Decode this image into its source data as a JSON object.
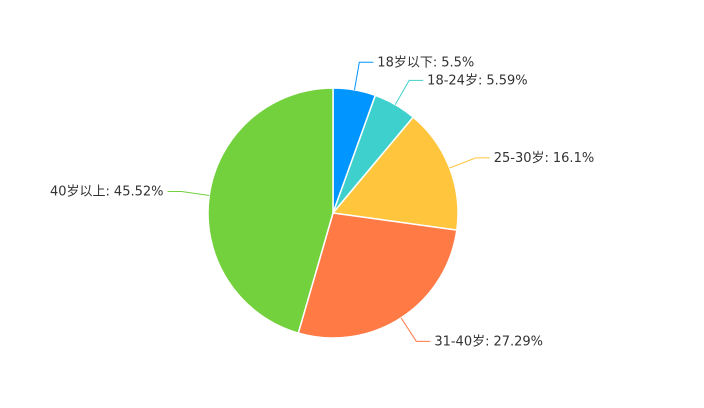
{
  "chart_data": {
    "type": "pie",
    "categories": [
      "18岁以下:",
      "18-24岁:",
      "25-30岁:",
      "31-40岁:",
      "40岁以上:"
    ],
    "values": [
      5.5,
      5.59,
      16.1,
      27.29,
      45.52
    ],
    "value_labels": [
      "5.5%",
      "5.59%",
      "16.1%",
      "27.29%",
      "45.52%"
    ],
    "colors": [
      "#0095ff",
      "#3dd0cc",
      "#ffc53d",
      "#ff7a45",
      "#73d13d"
    ]
  }
}
